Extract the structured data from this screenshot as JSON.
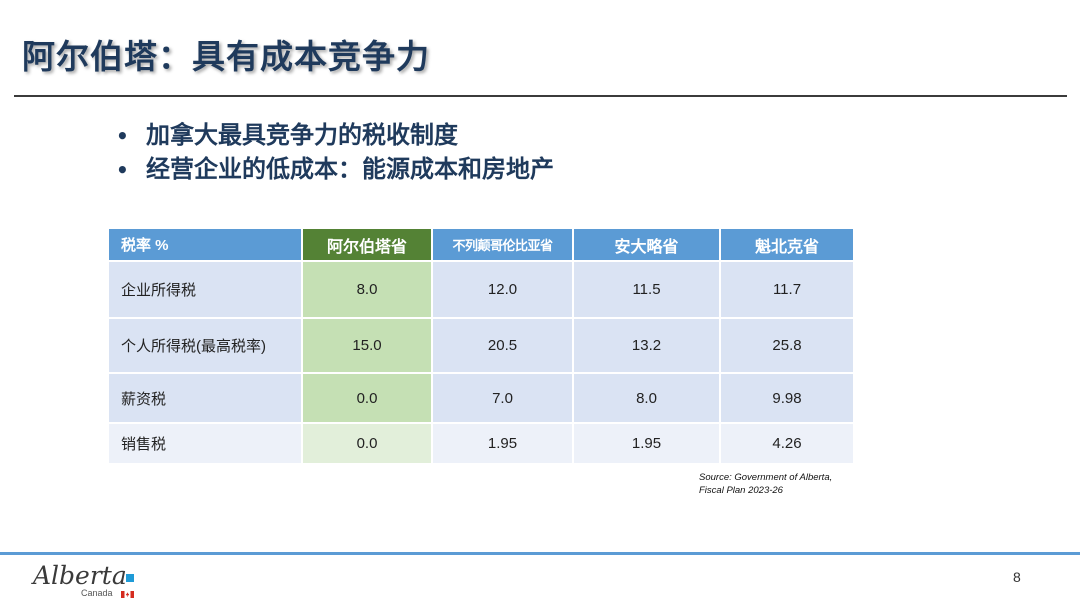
{
  "slide": {
    "title": "阿尔伯塔：具有成本竞争力",
    "bullets": [
      "加拿大最具竞争力的税收制度",
      "经营企业的低成本：能源成本和房地产"
    ],
    "page_number": "8"
  },
  "table": {
    "headers": [
      "税率 %",
      "阿尔伯塔省",
      "不列颠哥伦比亚省",
      "安大略省",
      "魁北克省"
    ],
    "rows": [
      {
        "label": "企业所得税",
        "values": [
          "8.0",
          "12.0",
          "11.5",
          "11.7"
        ]
      },
      {
        "label": "个人所得税(最高税率)",
        "values": [
          "15.0",
          "20.5",
          "13.2",
          "25.8"
        ]
      },
      {
        "label": "薪资税",
        "values": [
          "0.0",
          "7.0",
          "8.0",
          "9.98"
        ]
      },
      {
        "label": "销售税",
        "values": [
          "0.0",
          "1.95",
          "1.95",
          "4.26"
        ]
      }
    ],
    "source_line1": "Source: Government of Alberta,",
    "source_line2": "Fiscal Plan 2023-26"
  },
  "logo": {
    "wordmark": "Alberta",
    "sub": "Canada"
  },
  "colors": {
    "title": "#1f3a5c",
    "header_blue": "#5b9bd5",
    "header_green": "#548235",
    "cell_blue": "#dae3f3",
    "cell_green": "#c5e0b4"
  }
}
